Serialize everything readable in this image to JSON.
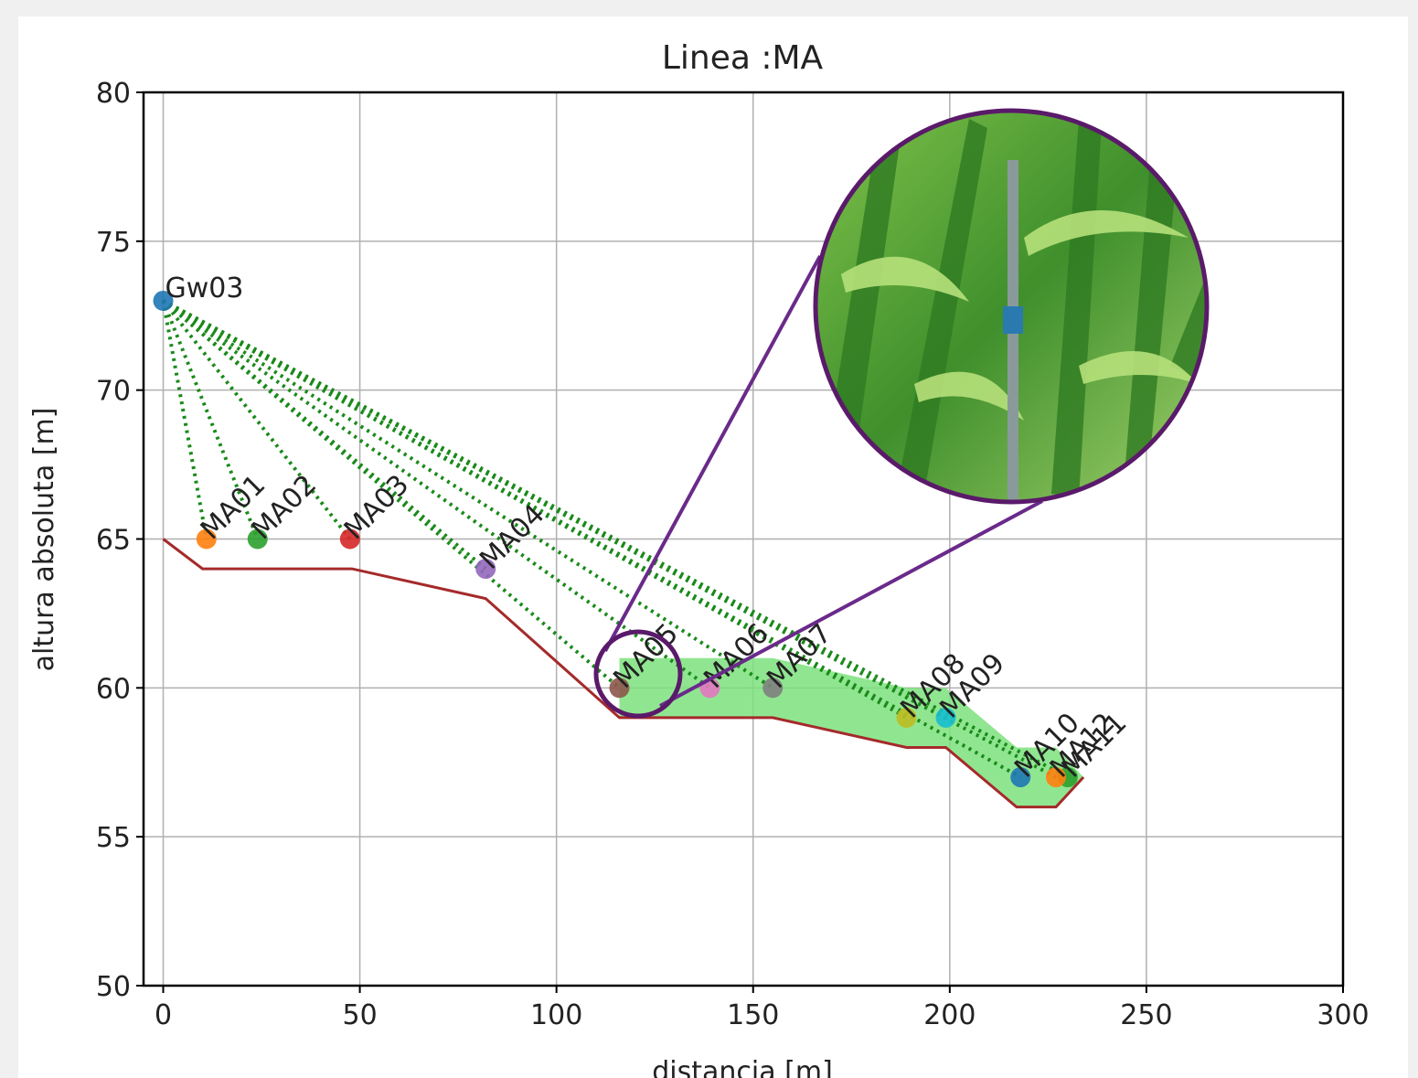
{
  "chart_data": {
    "type": "scatter",
    "title": "Linea :MA",
    "xlabel": "distancia [m]",
    "ylabel": "altura absoluta [m]",
    "xlim": [
      -5,
      300
    ],
    "ylim": [
      50,
      80
    ],
    "xticks": [
      0,
      50,
      100,
      150,
      200,
      250,
      300
    ],
    "yticks": [
      50,
      55,
      60,
      65,
      70,
      75,
      80
    ],
    "grid": true,
    "points": {
      "labels": [
        "Gw03",
        "MA01",
        "MA02",
        "MA03",
        "MA04",
        "MA05",
        "MA06",
        "MA07",
        "MA08",
        "MA09",
        "MA10",
        "MA11",
        "MA12"
      ],
      "x": [
        0,
        11,
        24,
        47.5,
        82,
        116,
        139,
        155,
        189,
        199,
        218,
        230,
        227
      ],
      "y": [
        73,
        65,
        65,
        65,
        64,
        60,
        60,
        60,
        59,
        59,
        57,
        57,
        57
      ],
      "colors": [
        "#1f77b4",
        "#ff7f0e",
        "#2ca02c",
        "#d62728",
        "#9467bd",
        "#8c564b",
        "#e377c2",
        "#7f7f7f",
        "#bcbd22",
        "#17becf",
        "#1f77b4",
        "#2ca02c",
        "#ff7f0e"
      ]
    },
    "terrain": {
      "color": "#a52a2a",
      "x": [
        0,
        10,
        48,
        82,
        116,
        155,
        189,
        199,
        217,
        227,
        234
      ],
      "y": [
        65,
        64,
        64,
        63,
        59,
        59,
        58,
        58,
        56,
        56,
        57
      ]
    },
    "water": {
      "color": "#7de27d",
      "x": [
        116,
        155,
        189,
        199,
        217,
        227,
        234
      ],
      "upper": [
        61,
        61,
        60,
        60,
        58,
        58,
        57
      ],
      "lower": [
        59,
        59,
        58,
        58,
        56,
        56,
        57
      ]
    },
    "link_color": "#1a8a1a"
  }
}
